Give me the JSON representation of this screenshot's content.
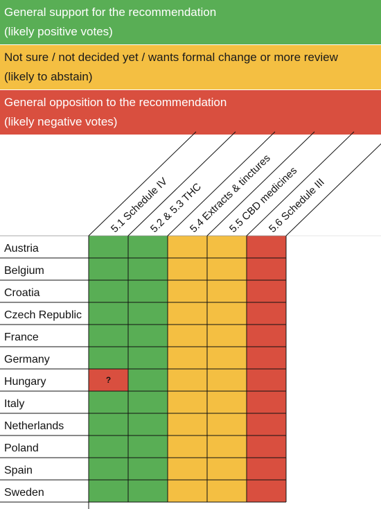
{
  "legend": [
    {
      "line1": "General support for the recommendation",
      "line2": "(likely positive votes)",
      "color": "#59ae55"
    },
    {
      "line1": "Not sure / not decided yet / wants formal change or more review",
      "line2": "(likely to abstain)",
      "color": "#f4bf42"
    },
    {
      "line1": "General opposition to the recommendation",
      "line2": "(likely negative votes)",
      "color": "#d94f3f"
    }
  ],
  "chart_data": {
    "type": "table",
    "columns": [
      "5.1 Schedule IV",
      "5.2 & 5.3 THC",
      "5.4 Extracts & tinctures",
      "5.5 CBD medicines",
      "5.6 Schedule III"
    ],
    "rows": [
      "Austria",
      "Belgium",
      "Croatia",
      "Czech Republic",
      "France",
      "Germany",
      "Hungary",
      "Italy",
      "Netherlands",
      "Poland",
      "Spain",
      "Sweden"
    ],
    "status_colors": {
      "support": "#59ae55",
      "abstain": "#f4bf42",
      "oppose": "#d94f3f"
    },
    "values": [
      [
        "support",
        "support",
        "abstain",
        "abstain",
        "oppose"
      ],
      [
        "support",
        "support",
        "abstain",
        "abstain",
        "oppose"
      ],
      [
        "support",
        "support",
        "abstain",
        "abstain",
        "oppose"
      ],
      [
        "support",
        "support",
        "abstain",
        "abstain",
        "oppose"
      ],
      [
        "support",
        "support",
        "abstain",
        "abstain",
        "oppose"
      ],
      [
        "support",
        "support",
        "abstain",
        "abstain",
        "oppose"
      ],
      [
        "oppose",
        "support",
        "abstain",
        "abstain",
        "oppose"
      ],
      [
        "support",
        "support",
        "abstain",
        "abstain",
        "oppose"
      ],
      [
        "support",
        "support",
        "abstain",
        "abstain",
        "oppose"
      ],
      [
        "support",
        "support",
        "abstain",
        "abstain",
        "oppose"
      ],
      [
        "support",
        "support",
        "abstain",
        "abstain",
        "oppose"
      ],
      [
        "support",
        "support",
        "abstain",
        "abstain",
        "oppose"
      ]
    ],
    "annotations": [
      {
        "row": "Hungary",
        "column": "5.1 Schedule IV",
        "text": "?"
      }
    ]
  }
}
